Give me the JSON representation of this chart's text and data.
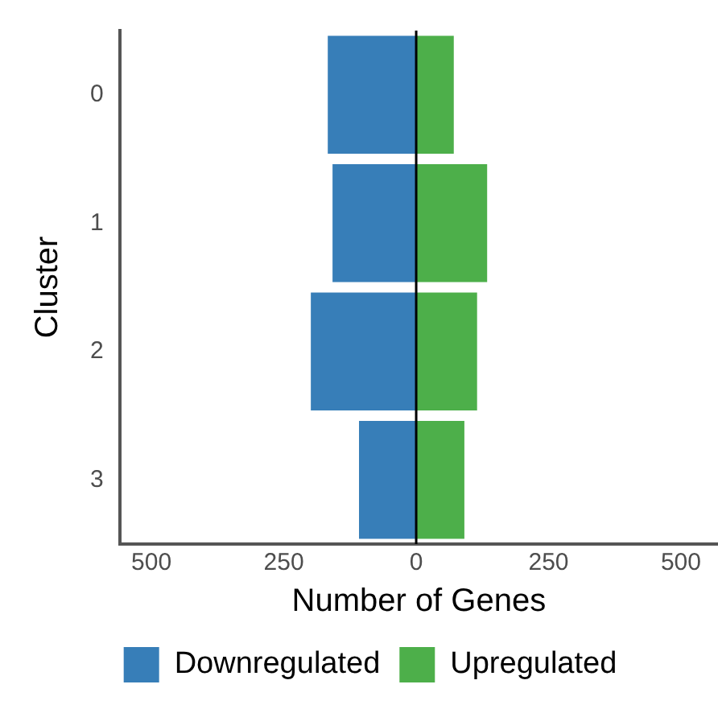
{
  "chart_data": {
    "type": "bar",
    "orientation": "horizontal",
    "stacked": true,
    "categories": [
      "0",
      "1",
      "2",
      "3"
    ],
    "series": [
      {
        "name": "Downregulated",
        "color": "#377eb8",
        "values": [
          -167,
          -158,
          -199,
          -108
        ]
      },
      {
        "name": "Upregulated",
        "color": "#4daf4a",
        "values": [
          71,
          134,
          115,
          91
        ]
      }
    ],
    "xlabel": "Number of Genes",
    "ylabel": "Cluster",
    "xlim": [
      -560,
      570
    ],
    "xticks": [
      {
        "value": -500,
        "label": "500"
      },
      {
        "value": -250,
        "label": "250"
      },
      0,
      250,
      500
    ],
    "ref_lines": [
      {
        "axis": "x",
        "value": 0,
        "color": "#000000"
      }
    ],
    "grid": false,
    "legend": "bottom"
  }
}
